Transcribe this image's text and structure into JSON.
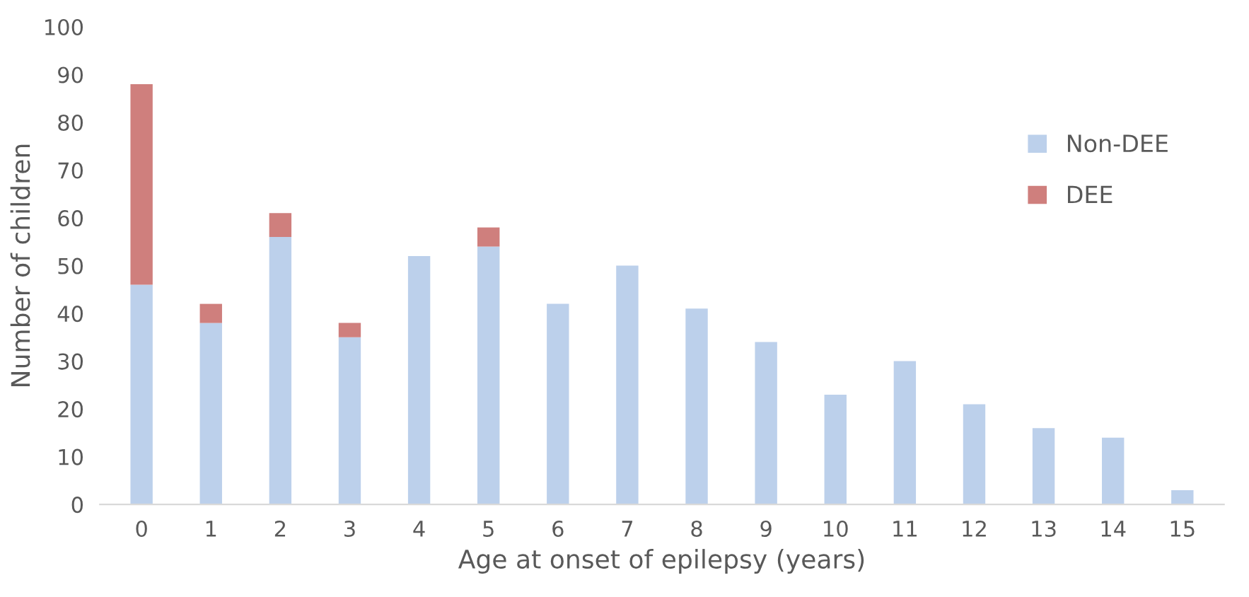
{
  "chart_data": {
    "type": "bar",
    "stacked": true,
    "xlabel": "Age at onset of epilepsy (years)",
    "ylabel": "Number of children",
    "categories": [
      "0",
      "1",
      "2",
      "3",
      "4",
      "5",
      "6",
      "7",
      "8",
      "9",
      "10",
      "11",
      "12",
      "13",
      "14",
      "15"
    ],
    "series": [
      {
        "name": "Non-DEE",
        "color": "#bcd0eb",
        "values": [
          46,
          38,
          56,
          35,
          52,
          54,
          42,
          50,
          41,
          34,
          23,
          30,
          21,
          16,
          14,
          3
        ]
      },
      {
        "name": "DEE",
        "color": "#cf7f7d",
        "values": [
          42,
          4,
          5,
          3,
          0,
          4,
          0,
          0,
          0,
          0,
          0,
          0,
          0,
          0,
          0,
          0
        ]
      }
    ],
    "ylim": [
      0,
      100
    ],
    "yticks": [
      0,
      10,
      20,
      30,
      40,
      50,
      60,
      70,
      80,
      90,
      100
    ],
    "grid": false,
    "legend": "top right"
  }
}
